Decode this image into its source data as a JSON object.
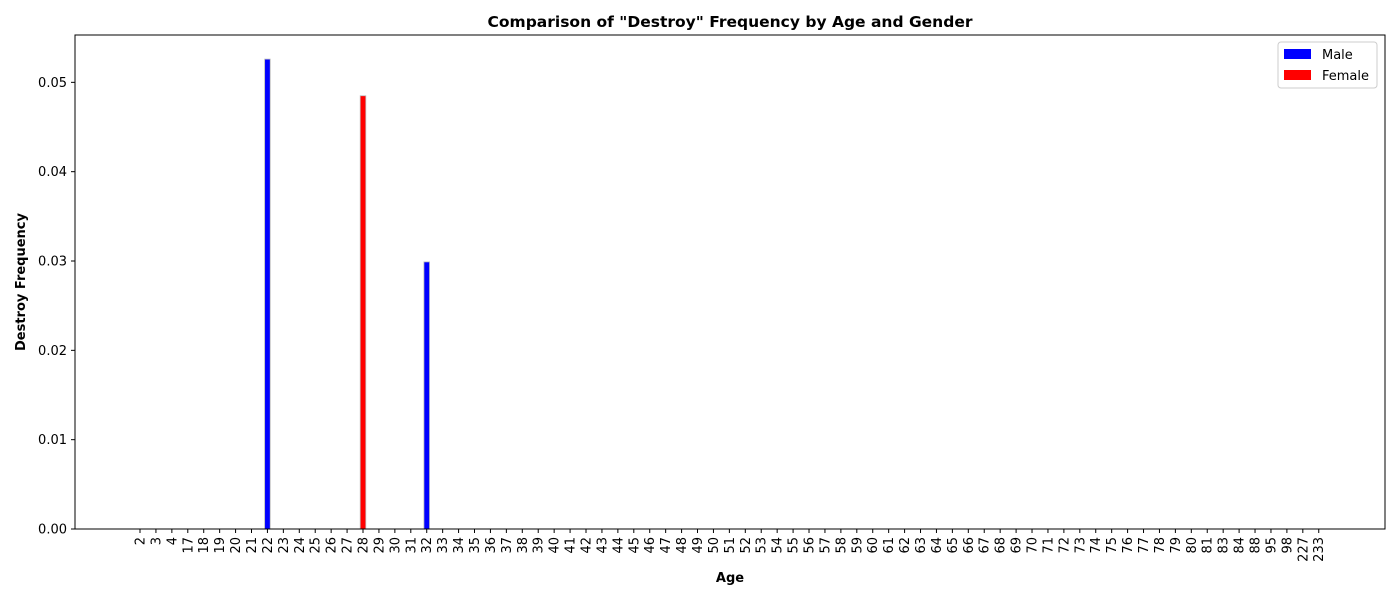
{
  "chart_data": {
    "type": "bar",
    "title": "Comparison of \"Destroy\" Frequency by Age and Gender",
    "xlabel": "Age",
    "ylabel": "Destroy Frequency",
    "ylim": [
      0,
      0.0553
    ],
    "yticks": [
      "0.00",
      "0.01",
      "0.02",
      "0.03",
      "0.04",
      "0.05"
    ],
    "grid": false,
    "legend_position": "top-right",
    "categories": [
      "2",
      "3",
      "4",
      "17",
      "18",
      "19",
      "20",
      "21",
      "22",
      "23",
      "24",
      "25",
      "26",
      "27",
      "28",
      "29",
      "30",
      "31",
      "32",
      "33",
      "34",
      "35",
      "36",
      "37",
      "38",
      "39",
      "40",
      "41",
      "42",
      "43",
      "44",
      "45",
      "46",
      "47",
      "48",
      "49",
      "50",
      "51",
      "52",
      "53",
      "54",
      "55",
      "56",
      "57",
      "58",
      "59",
      "60",
      "61",
      "62",
      "63",
      "64",
      "65",
      "66",
      "67",
      "68",
      "69",
      "70",
      "71",
      "72",
      "73",
      "74",
      "75",
      "76",
      "77",
      "78",
      "79",
      "80",
      "81",
      "83",
      "84",
      "88",
      "95",
      "98",
      "227",
      "233"
    ],
    "series": [
      {
        "name": "Male",
        "color": "#0000ff",
        "values": [
          0,
          0,
          0,
          0,
          0,
          0,
          0,
          0,
          0.0526,
          0,
          0,
          0,
          0,
          0,
          0,
          0,
          0,
          0,
          0.0299,
          0,
          0,
          0,
          0,
          0,
          0,
          0,
          0,
          0,
          0,
          0,
          0,
          0,
          0,
          0,
          0,
          0,
          0,
          0,
          0,
          0,
          0,
          0,
          0,
          0,
          0,
          0,
          0,
          0,
          0,
          0,
          0,
          0,
          0,
          0,
          0,
          0,
          0,
          0,
          0,
          0,
          0,
          0,
          0,
          0,
          0,
          0,
          0,
          0,
          0,
          0,
          0,
          0,
          0,
          0,
          0
        ]
      },
      {
        "name": "Female",
        "color": "#ff0000",
        "values": [
          0,
          0,
          0,
          0,
          0,
          0,
          0,
          0,
          0,
          0,
          0,
          0,
          0,
          0,
          0.0485,
          0,
          0,
          0,
          0,
          0,
          0,
          0,
          0,
          0,
          0,
          0,
          0,
          0,
          0,
          0,
          0,
          0,
          0,
          0,
          0,
          0,
          0,
          0,
          0,
          0,
          0,
          0,
          0,
          0,
          0,
          0,
          0,
          0,
          0,
          0,
          0,
          0,
          0,
          0,
          0,
          0,
          0,
          0,
          0,
          0,
          0,
          0,
          0,
          0,
          0,
          0,
          0,
          0,
          0,
          0,
          0,
          0,
          0,
          0,
          0
        ]
      }
    ]
  }
}
